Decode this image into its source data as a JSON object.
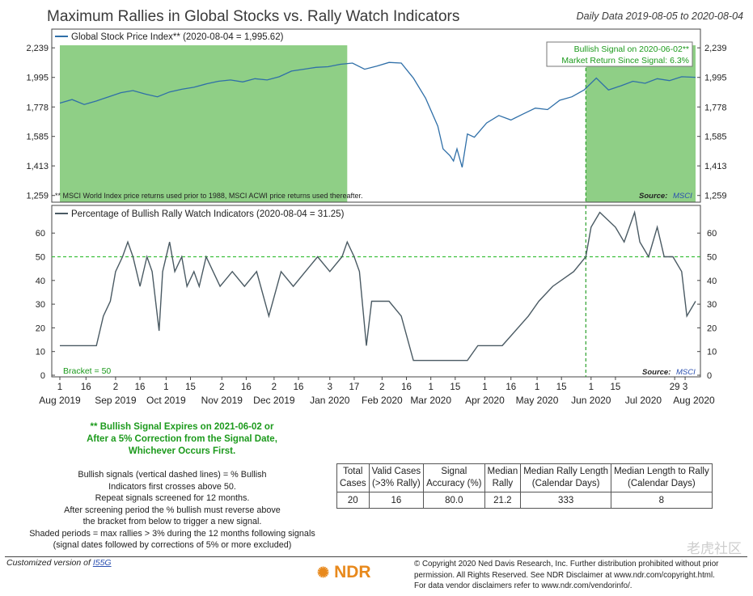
{
  "header": {
    "title": "Maximum Rallies in Global Stocks vs. Rally Watch Indicators",
    "date_range": "Daily Data 2019-08-05 to 2020-08-04"
  },
  "chart_data": [
    {
      "type": "line",
      "title": "",
      "legend": "Global Stock Price Index** (2020-08-04 = 1,995.62)",
      "series_name": "Global Stock Price Index",
      "y_scale": "log",
      "yticks": [
        1259,
        1413,
        1585,
        1778,
        1995,
        2239
      ],
      "ytick_labels": [
        "1,259",
        "1,413",
        "1,585",
        "1,778",
        "1,995",
        "2,239"
      ],
      "ylim": [
        1250,
        2290
      ],
      "signal_box": [
        "Bullish Signal on 2020-06-02**",
        "Market Return Since Signal: 6.3%"
      ],
      "footnote": "** MSCI World Index price returns used prior to 1988, MSCI ACWI price returns used thereafter.",
      "source_label": "Source:",
      "source_value": "MSCI",
      "shaded_periods": [
        [
          "2019-08-05",
          "2020-01-17"
        ],
        [
          "2020-06-02",
          "2020-08-04"
        ]
      ],
      "signal_dates": [
        "2020-06-02"
      ],
      "x": [
        "2019-08-05",
        "2019-08-12",
        "2019-08-19",
        "2019-08-26",
        "2019-09-02",
        "2019-09-09",
        "2019-09-16",
        "2019-09-23",
        "2019-09-30",
        "2019-10-07",
        "2019-10-14",
        "2019-10-21",
        "2019-10-28",
        "2019-11-04",
        "2019-11-11",
        "2019-11-18",
        "2019-11-25",
        "2019-12-02",
        "2019-12-09",
        "2019-12-16",
        "2019-12-23",
        "2019-12-30",
        "2020-01-06",
        "2020-01-13",
        "2020-01-20",
        "2020-01-27",
        "2020-02-03",
        "2020-02-10",
        "2020-02-17",
        "2020-02-24",
        "2020-03-02",
        "2020-03-09",
        "2020-03-12",
        "2020-03-16",
        "2020-03-18",
        "2020-03-20",
        "2020-03-23",
        "2020-03-26",
        "2020-03-30",
        "2020-04-06",
        "2020-04-13",
        "2020-04-20",
        "2020-04-27",
        "2020-05-04",
        "2020-05-11",
        "2020-05-18",
        "2020-05-25",
        "2020-06-01",
        "2020-06-08",
        "2020-06-15",
        "2020-06-22",
        "2020-06-29",
        "2020-07-06",
        "2020-07-13",
        "2020-07-20",
        "2020-07-27",
        "2020-08-04"
      ],
      "values": [
        1805,
        1830,
        1795,
        1820,
        1850,
        1880,
        1895,
        1870,
        1850,
        1885,
        1905,
        1920,
        1945,
        1965,
        1975,
        1960,
        1985,
        1975,
        2000,
        2045,
        2060,
        2075,
        2080,
        2100,
        2110,
        2060,
        2085,
        2115,
        2110,
        1990,
        1840,
        1650,
        1510,
        1470,
        1440,
        1510,
        1405,
        1600,
        1580,
        1670,
        1720,
        1690,
        1730,
        1770,
        1760,
        1825,
        1850,
        1900,
        1990,
        1900,
        1930,
        1965,
        1950,
        1985,
        1970,
        2000,
        1996
      ]
    },
    {
      "type": "line",
      "title": "",
      "legend": "Percentage of Bullish Rally Watch Indicators (2020-08-04 = 31.25)",
      "series_name": "Percentage of Bullish Rally Watch Indicators",
      "yticks": [
        0,
        10,
        20,
        30,
        40,
        50,
        60
      ],
      "ylim": [
        0,
        71
      ],
      "bracket": 50,
      "bracket_label": "Bracket = 50",
      "source_label": "Source:",
      "source_value": "MSCI",
      "x": [
        "2019-08-05",
        "2019-08-12",
        "2019-08-19",
        "2019-08-26",
        "2019-08-30",
        "2019-09-03",
        "2019-09-06",
        "2019-09-10",
        "2019-09-13",
        "2019-09-16",
        "2019-09-18",
        "2019-09-20",
        "2019-09-24",
        "2019-09-27",
        "2019-10-01",
        "2019-10-03",
        "2019-10-07",
        "2019-10-10",
        "2019-10-14",
        "2019-10-17",
        "2019-10-21",
        "2019-10-24",
        "2019-10-28",
        "2019-11-01",
        "2019-11-05",
        "2019-11-12",
        "2019-11-19",
        "2019-11-26",
        "2019-12-03",
        "2019-12-10",
        "2019-12-17",
        "2019-12-24",
        "2019-12-31",
        "2020-01-07",
        "2020-01-14",
        "2020-01-17",
        "2020-01-21",
        "2020-01-24",
        "2020-01-28",
        "2020-01-31",
        "2020-02-04",
        "2020-02-10",
        "2020-02-17",
        "2020-02-24",
        "2020-02-28",
        "2020-03-04",
        "2020-03-16",
        "2020-03-26",
        "2020-04-01",
        "2020-04-15",
        "2020-04-30",
        "2020-05-06",
        "2020-05-14",
        "2020-05-26",
        "2020-06-02",
        "2020-06-05",
        "2020-06-10",
        "2020-06-19",
        "2020-06-24",
        "2020-06-30",
        "2020-07-03",
        "2020-07-08",
        "2020-07-13",
        "2020-07-17",
        "2020-07-22",
        "2020-07-27",
        "2020-07-30",
        "2020-08-04"
      ],
      "values": [
        12.5,
        12.5,
        12.5,
        12.5,
        25,
        31.25,
        43.75,
        50,
        56.25,
        50,
        43.75,
        37.5,
        50,
        43.75,
        18.75,
        43.75,
        56.25,
        43.75,
        50,
        37.5,
        43.75,
        37.5,
        50,
        43.75,
        37.5,
        43.75,
        37.5,
        43.75,
        25,
        43.75,
        37.5,
        43.75,
        50,
        43.75,
        50,
        56.25,
        50,
        43.75,
        12.5,
        31.25,
        31.25,
        31.25,
        25,
        6.25,
        6.25,
        6.25,
        6.25,
        6.25,
        12.5,
        12.5,
        25,
        31.25,
        37.5,
        43.75,
        50,
        62.5,
        68.75,
        62.5,
        56.25,
        68.75,
        56.25,
        50,
        62.5,
        50,
        50,
        43.75,
        25,
        31.25
      ]
    }
  ],
  "x_axis": {
    "day_labels": [
      "1",
      "16",
      "2",
      "16",
      "1",
      "15",
      "2",
      "16",
      "2",
      "16",
      "3",
      "17",
      "2",
      "16",
      "1",
      "15",
      "1",
      "16",
      "1",
      "15",
      "1",
      "15",
      "29",
      "3"
    ],
    "month_labels": [
      "Aug 2019",
      "Sep 2019",
      "Oct 2019",
      "Nov 2019",
      "Dec 2019",
      "Jan 2020",
      "Feb 2020",
      "Mar 2020",
      "Apr 2020",
      "May 2020",
      "Jun 2020",
      "Jul 2020",
      "Aug 2020"
    ]
  },
  "notes": {
    "expire": "** Bullish Signal Expires on 2021-06-02 or\nAfter a 5% Correction from the Signal Date,\nWhichever Occurs First.",
    "lines": [
      "Bullish signals (vertical dashed lines) = % Bullish",
      "Indicators first crosses above 50.",
      "Repeat signals screened for 12 months.",
      "After screening period the % bullish must reverse above",
      "the bracket from below to trigger a new signal.",
      "Shaded periods = max rallies > 3% during the 12 months following signals",
      "(signal dates followed by corrections of 5% or more excluded)"
    ]
  },
  "stats_table": {
    "headers": [
      [
        "Total",
        "Cases"
      ],
      [
        "Valid Cases",
        "(>3% Rally)"
      ],
      [
        "Signal",
        "Accuracy (%)"
      ],
      [
        "Median",
        "Rally"
      ],
      [
        "Median Rally Length",
        "(Calendar Days)"
      ],
      [
        "Median Length to Rally",
        "(Calendar Days)"
      ]
    ],
    "row": [
      "20",
      "16",
      "80.0",
      "21.2",
      "333",
      "8"
    ]
  },
  "footer": {
    "custom_text": "Customized version of",
    "custom_link": "I55G",
    "logo_text": "NDR",
    "copyright": [
      "© Copyright 2020 Ned Davis Research, Inc. Further distribution prohibited without prior",
      "permission. All Rights Reserved. See NDR Disclaimer at www.ndr.com/copyright.html.",
      "For data vendor disclaimers refer to www.ndr.com/vendorinfo/."
    ],
    "watermark": "老虎社区"
  },
  "colors": {
    "price_line": "#2f6fa8",
    "pct_line": "#4a5a63",
    "shade": "#8fcf86",
    "signal": "#2ca02c",
    "bracket": "#3cbf3c",
    "accent_text": "#1c9a1c"
  }
}
